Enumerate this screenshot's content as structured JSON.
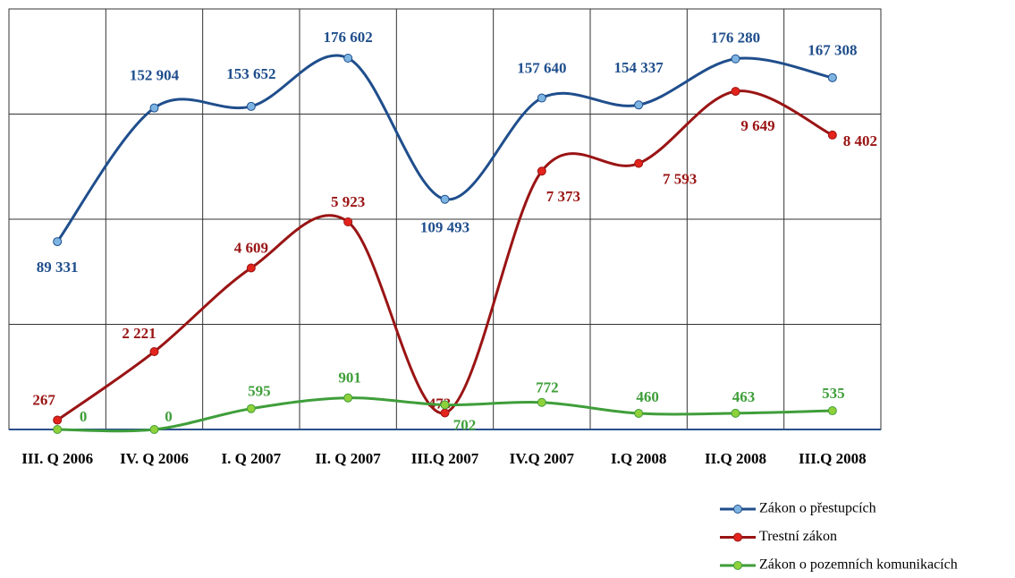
{
  "chart_data": {
    "type": "line",
    "categories": [
      "III. Q 2006",
      "IV. Q 2006",
      "I. Q 2007",
      "II. Q 2007",
      "III.Q 2007",
      "IV.Q 2007",
      "I.Q 2008",
      "II.Q 2008",
      "III.Q 2008"
    ],
    "ylim": [
      0,
      12000
    ],
    "yticks": [
      0,
      3000,
      6000,
      9000,
      12000
    ],
    "y2lim": [
      0,
      200000
    ],
    "y2ticks": [
      0,
      50000,
      100000,
      150000,
      200000
    ],
    "grid": true,
    "legend": "bottom-right",
    "series": [
      {
        "name": "Zákon o přestupcích",
        "color": "#1f4e8c",
        "axis": "y2",
        "values": [
          89331,
          152904,
          153652,
          176602,
          109493,
          157640,
          154337,
          176280,
          167308
        ],
        "value_labels": [
          "89 331",
          "152 904",
          "153 652",
          "176 602",
          "109 493",
          "157 640",
          "154 337",
          "176 280",
          "167 308"
        ]
      },
      {
        "name": "Trestní zákon",
        "color": "#9a1414",
        "values": [
          267,
          2221,
          4609,
          5923,
          473,
          7373,
          7593,
          9649,
          8402
        ],
        "value_labels": [
          "267",
          "2 221",
          "4 609",
          "5 923",
          "473",
          "7 373",
          "7 593",
          "9 649",
          "8 402"
        ]
      },
      {
        "name": "Zákon o pozemních komunikacích",
        "color": "#3f9e3a",
        "values": [
          0,
          0,
          595,
          901,
          702,
          772,
          460,
          463,
          535
        ]
      }
    ]
  }
}
